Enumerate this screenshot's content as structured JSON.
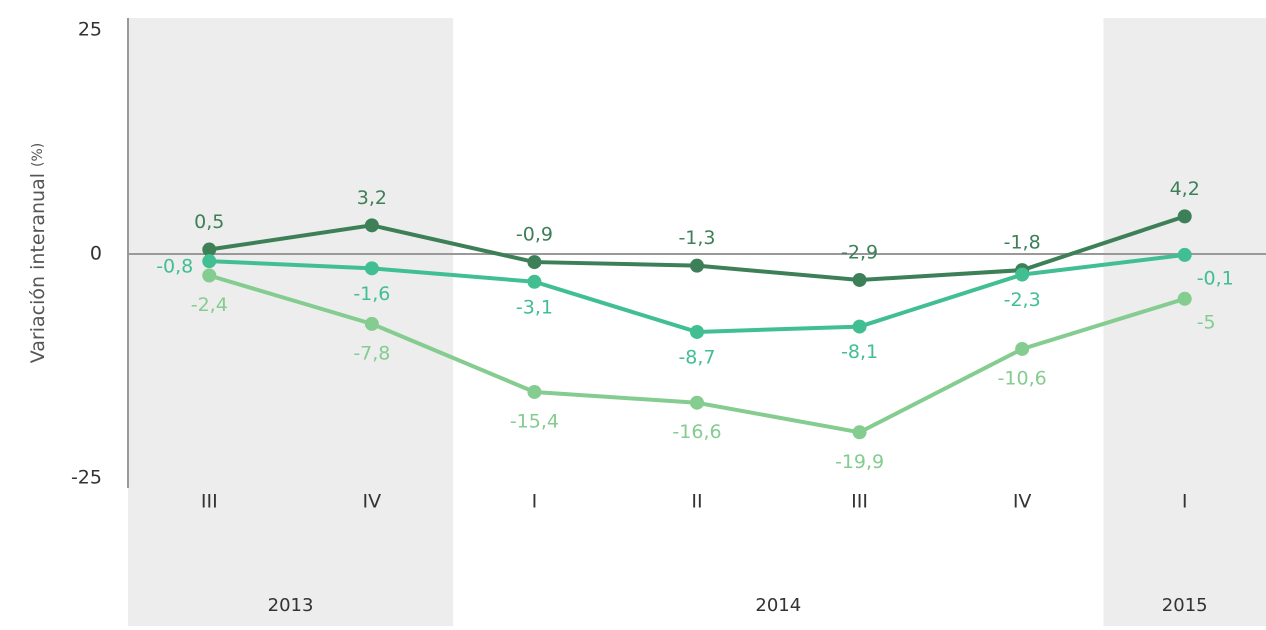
{
  "chart_data": {
    "type": "line",
    "y_label": "Variación interanual",
    "y_label_unit": "(%)",
    "categories": [
      "III",
      "IV",
      "I",
      "II",
      "III",
      "IV",
      "I"
    ],
    "year_groups": [
      {
        "label": "2013",
        "span": 2
      },
      {
        "label": "2014",
        "span": 4
      },
      {
        "label": "2015",
        "span": 1
      }
    ],
    "series": [
      {
        "color": "#3d8058",
        "values": [
          0.5,
          3.2,
          -0.9,
          -1.3,
          -2.9,
          -1.8,
          4.2
        ],
        "value_labels": [
          "0,5",
          "3,2",
          "-0,9",
          "-1,3",
          "-2,9",
          "-1,8",
          "4,2"
        ]
      },
      {
        "color": "#41bf93",
        "values": [
          -0.8,
          -1.6,
          -3.1,
          -8.7,
          -8.1,
          -2.3,
          -0.1
        ],
        "value_labels": [
          "-0,8",
          "-1,6",
          "-3,1",
          "-8,7",
          "-8,1",
          "-2,3",
          "-0,1"
        ]
      },
      {
        "color": "#84cc8f",
        "values": [
          -2.4,
          -7.8,
          -15.4,
          -16.6,
          -19.9,
          -10.6,
          -5
        ],
        "value_labels": [
          "-2,4",
          "-7,8",
          "-15,4",
          "-16,6",
          "-19,9",
          "-10,6",
          "-5"
        ]
      }
    ],
    "ylim": [
      -25,
      25
    ],
    "yticks": [
      25,
      0,
      -25
    ]
  }
}
